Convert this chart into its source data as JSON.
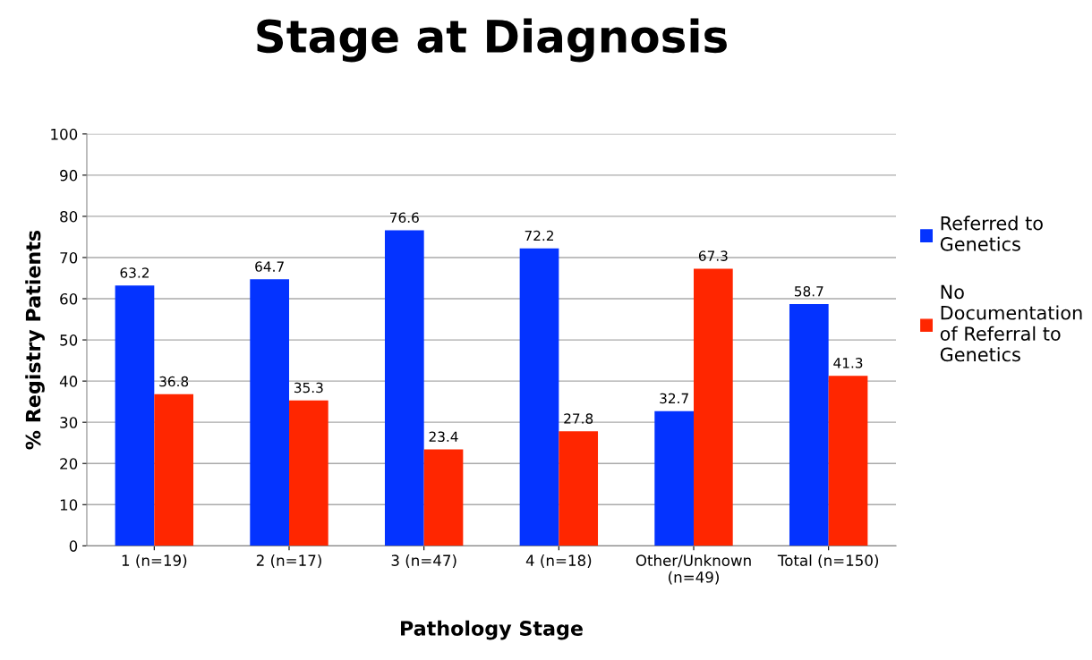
{
  "chart_data": {
    "type": "bar",
    "title": "Stage at Diagnosis",
    "xlabel": "Pathology Stage",
    "ylabel": "% Registry Patients",
    "categories": [
      "1 (n=19)",
      "2 (n=17)",
      "3 (n=47)",
      "4 (n=18)",
      "Other/Unknown\n(n=49)",
      "Total (n=150)"
    ],
    "series": [
      {
        "name": "Referred to\nGenetics",
        "color": "#0433ff",
        "values": [
          63.2,
          64.7,
          76.6,
          72.2,
          32.7,
          58.7
        ]
      },
      {
        "name": "No\nDocumentation\nof Referral to\nGenetics",
        "color": "#ff2600",
        "values": [
          36.8,
          35.3,
          23.4,
          27.8,
          67.3,
          41.3
        ]
      }
    ],
    "ylim": [
      0,
      100
    ],
    "yticks": [
      0,
      10,
      20,
      30,
      40,
      50,
      60,
      70,
      80,
      90,
      100
    ],
    "grid": "y",
    "legend": "right",
    "data_labels": true
  }
}
